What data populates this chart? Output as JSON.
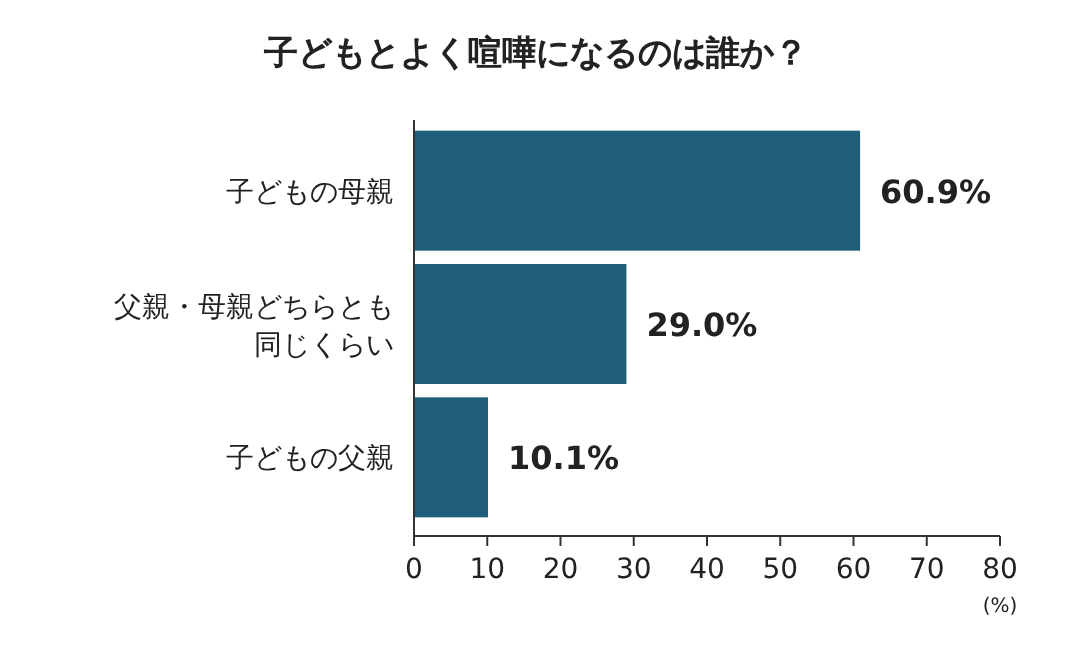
{
  "chart_data": {
    "type": "bar",
    "orientation": "horizontal",
    "title": "子どもとよく喧嘩になるのは誰か？",
    "categories": [
      "子どもの母親",
      "父親・母親どちらとも同じくらい",
      "子どもの父親"
    ],
    "values": [
      60.9,
      29.0,
      10.1
    ],
    "color": "#1e5e78",
    "value_labels": [
      "60.9%",
      "29.0%",
      "10.1%"
    ],
    "xlim": [
      0,
      80
    ],
    "xticks": [
      0,
      10,
      20,
      30,
      40,
      50,
      60,
      70,
      80
    ],
    "xlabel": "(%)",
    "grid": false
  }
}
